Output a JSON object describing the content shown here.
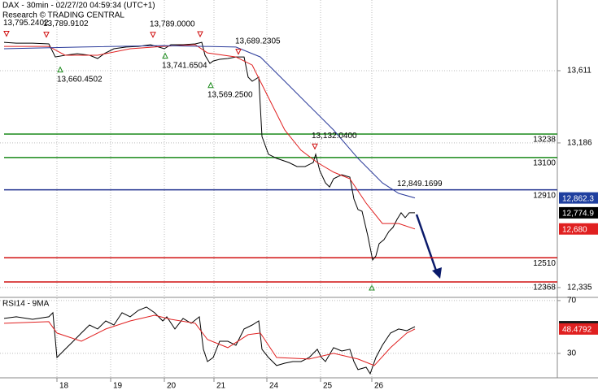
{
  "chart_data": [
    {
      "type": "line",
      "title": "DAX - 30min - 02/27/20 04:59:34 (UTC+1)",
      "subtitle": "Research © TRADING CENTRAL",
      "xlim": [
        0,
        171.25
      ],
      "ylim": [
        12282,
        14027
      ],
      "yticks": [
        {
          "value": 13611,
          "label": "13,611"
        },
        {
          "value": 13186,
          "label": "13,186"
        },
        {
          "value": 12335,
          "label": "12,335"
        }
      ],
      "grid": true,
      "series": [
        {
          "color": "#000000",
          "x": [
            1.25,
            5,
            10,
            15,
            17,
            20,
            23.75,
            27.5,
            30,
            32,
            35,
            38.75,
            42.5,
            46.25,
            48.75,
            50.5,
            52.5,
            56.25,
            60,
            62,
            63,
            64.5,
            65.5,
            67.5,
            70,
            72.5,
            75,
            76.25,
            77.5,
            79.5,
            80.5,
            82.5,
            85,
            88.75,
            91.25,
            93.75,
            96.25,
            97,
            98.25,
            100,
            101.25,
            102.5,
            105,
            107.5,
            108.75,
            110,
            111.25,
            113,
            114.5,
            115.5,
            116.5,
            118,
            119.5,
            120.75,
            122,
            123.25,
            124.5,
            125.75,
            127.5
          ],
          "values": [
            13778,
            13773,
            13773,
            13769,
            13692,
            13702,
            13711,
            13702,
            13683,
            13711,
            13740,
            13750,
            13754,
            13764,
            13750,
            13740,
            13764,
            13764,
            13769,
            13778,
            13702,
            13654,
            13668,
            13678,
            13683,
            13692,
            13692,
            13573,
            13549,
            13573,
            13224,
            13119,
            13095,
            13071,
            13047,
            13047,
            13071,
            13119,
            13023,
            12951,
            12927,
            12975,
            12999,
            12985,
            12856,
            12794,
            12784,
            12641,
            12497,
            12521,
            12593,
            12617,
            12665,
            12689,
            12736,
            12775,
            12746,
            12775,
            12774.9
          ]
        },
        {
          "color": "#e02020",
          "x": [
            1.25,
            15,
            20,
            30,
            40,
            50,
            60,
            63.75,
            72.5,
            77.5,
            82.5,
            87.5,
            92.5,
            97.5,
            102.5,
            107.5,
            112.5,
            117.5,
            122.5,
            127.5
          ],
          "values": [
            13754,
            13754,
            13702,
            13702,
            13740,
            13754,
            13764,
            13716,
            13692,
            13644,
            13453,
            13262,
            13143,
            13071,
            13014,
            12975,
            12832,
            12712,
            12712,
            12680
          ]
        },
        {
          "color": "#2a3a9a",
          "x": [
            1.25,
            25,
            50,
            62.5,
            72.5,
            80,
            87.5,
            95,
            102.5,
            110,
            117.5,
            122.5,
            127.5
          ],
          "values": [
            13740,
            13750,
            13759,
            13754,
            13750,
            13692,
            13549,
            13405,
            13262,
            13095,
            12951,
            12889,
            12862.3
          ]
        }
      ],
      "levels": [
        {
          "value": 13238,
          "color": "#1a8a1a"
        },
        {
          "value": 13100,
          "color": "#1a8a1a"
        },
        {
          "value": 12910,
          "color": "#1f2f8f"
        },
        {
          "value": 12510,
          "color": "#d01010"
        },
        {
          "value": 12368,
          "color": "#d01010"
        }
      ],
      "annotations": [
        {
          "x": 2,
          "value": 13795.2402,
          "label": "13,795.2402",
          "kind": "high"
        },
        {
          "x": 14.25,
          "value": 13789.9102,
          "label": "13,789.9102",
          "kind": "high"
        },
        {
          "x": 47,
          "value": 13789.0,
          "label": "13,789.0000",
          "kind": "high"
        },
        {
          "x": 18.5,
          "value": 13660.4502,
          "label": "13,660.4502",
          "kind": "low"
        },
        {
          "x": 50.75,
          "value": 13741.6504,
          "label": "13,741.6504",
          "kind": "low"
        },
        {
          "x": 64.75,
          "value": 13569.25,
          "label": "13,569.2500",
          "kind": "low"
        },
        {
          "x": 73.25,
          "value": 13689.2305,
          "label": "13,689.2305",
          "kind": "high"
        },
        {
          "x": 96.75,
          "value": 13132.04,
          "label": "13,132.0400",
          "kind": "high"
        },
        {
          "x": 123,
          "value": 12849.1699,
          "label": "12,849.1699",
          "kind": "note"
        }
      ],
      "tags": [
        {
          "value": 12862.3,
          "label": "12,862.3",
          "color": "#1f3f9f"
        },
        {
          "value": 12774.9,
          "label": "12,774.9",
          "color": "#000000"
        },
        {
          "value": 12680,
          "label": "12,680",
          "color": "#e02020"
        }
      ]
    },
    {
      "type": "line",
      "title": "RSI14 - 9MA",
      "xlim": [
        0,
        171.25
      ],
      "ylim": [
        11.5,
        71.8
      ],
      "yticks": [
        70,
        30
      ],
      "xticks": [
        {
          "value": 17.5,
          "label": "18"
        },
        {
          "value": 34,
          "label": "19"
        },
        {
          "value": 50.5,
          "label": "20"
        },
        {
          "value": 65.75,
          "label": "21"
        },
        {
          "value": 82,
          "label": "24"
        },
        {
          "value": 98.5,
          "label": "25"
        },
        {
          "value": 114.25,
          "label": "26"
        }
      ],
      "grid": true,
      "series": [
        {
          "color": "#000000",
          "x": [
            1.25,
            5,
            10,
            15,
            16.25,
            17.5,
            20,
            22.5,
            25,
            27.5,
            30,
            32.5,
            35,
            37.5,
            40,
            42.5,
            45,
            47.5,
            50,
            51.25,
            53.75,
            56.25,
            58.75,
            61.25,
            62.5,
            63.75,
            65.5,
            67.5,
            70,
            72.5,
            75,
            77.5,
            79.5,
            80.5,
            82.5,
            85,
            87.5,
            90,
            92.5,
            95,
            96.25,
            97.5,
            98.75,
            100,
            102.5,
            105,
            107.5,
            108.75,
            110,
            112.5,
            113.75,
            115.5,
            117.5,
            120,
            122.5,
            125,
            127.5
          ],
          "values": [
            56.5,
            57.7,
            55.8,
            57.7,
            60.8,
            26.9,
            33.1,
            39.2,
            45.4,
            51.5,
            48.5,
            54.6,
            51.5,
            60.8,
            57.7,
            62.6,
            65.1,
            60.8,
            54.6,
            57.7,
            48.5,
            56.5,
            52.8,
            57.7,
            33.1,
            23.8,
            26.9,
            39.2,
            39.2,
            36.2,
            48.5,
            51.5,
            54.6,
            33.1,
            26.9,
            20.8,
            22.6,
            23.8,
            23.8,
            26.9,
            30,
            33.1,
            26.9,
            23.8,
            34.3,
            31.8,
            33.1,
            23.8,
            17.7,
            19.5,
            14.6,
            26.9,
            36.2,
            45.4,
            48.5,
            47.2,
            50.2322
          ]
        },
        {
          "color": "#e02020",
          "x": [
            1.25,
            15,
            17.5,
            25,
            32.5,
            40,
            47.5,
            52.5,
            60,
            63.75,
            70,
            76.25,
            80,
            85,
            95,
            102.5,
            110,
            115,
            120,
            125,
            127.5
          ],
          "values": [
            52.8,
            54,
            45.4,
            39.2,
            48.5,
            54.6,
            58.9,
            55.8,
            52.8,
            40.5,
            34.3,
            44.2,
            45.4,
            26.9,
            25.7,
            30,
            25.7,
            20.8,
            34.3,
            45.4,
            48.4792
          ]
        }
      ],
      "tags": [
        {
          "value": 50.2322,
          "color": "#1a1a1a"
        },
        {
          "value": 48.4792,
          "color": "#e02020"
        }
      ]
    }
  ]
}
